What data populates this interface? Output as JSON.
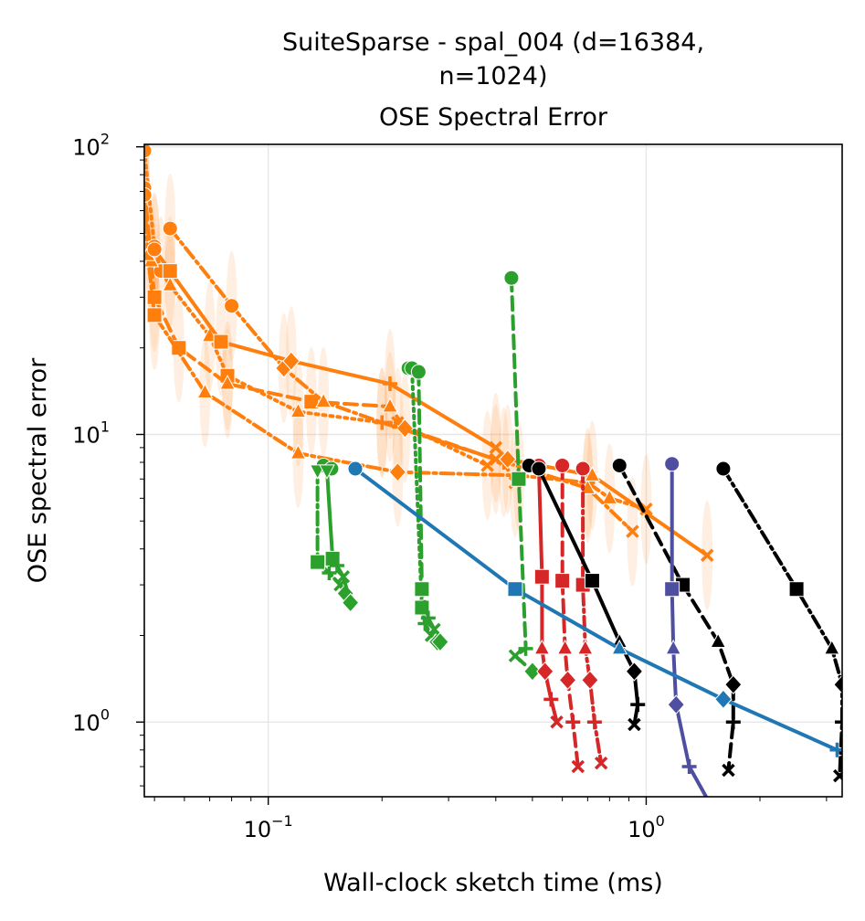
{
  "chart_data": {
    "type": "line",
    "title_lines": [
      "SuiteSparse - spal_004 (d=16384,",
      "n=1024)",
      "OSE Spectral Error"
    ],
    "xlabel": "Wall-clock sketch time (ms)",
    "ylabel": "OSE spectral error",
    "x_scale": "log",
    "y_scale": "log",
    "xlim": [
      0.047,
      3.3
    ],
    "ylim": [
      0.55,
      102
    ],
    "grid": true,
    "x_ticks": [
      {
        "base": "10",
        "exp": "−1",
        "value": 0.1
      },
      {
        "base": "10",
        "exp": "0",
        "value": 1
      }
    ],
    "y_ticks": [
      {
        "base": "10",
        "exp": "0",
        "value": 1
      },
      {
        "base": "10",
        "exp": "1",
        "value": 10
      },
      {
        "base": "10",
        "exp": "2",
        "value": 100
      }
    ],
    "series": [
      {
        "color": "#ff7f0e",
        "style": "dotted",
        "points": [
          [
            0.047,
            97,
            "o"
          ],
          [
            0.05,
            45,
            "o"
          ],
          [
            0.052,
            37,
            "o"
          ],
          [
            0.055,
            33,
            "^"
          ],
          [
            0.07,
            22,
            "^"
          ],
          [
            0.078,
            16,
            "s"
          ],
          [
            0.12,
            12,
            "^"
          ],
          [
            0.2,
            11,
            "+"
          ],
          [
            0.22,
            11,
            "x"
          ],
          [
            0.38,
            7.8,
            "x"
          ]
        ]
      },
      {
        "color": "#ff7f0e",
        "style": "dashed",
        "points": [
          [
            0.047,
            72,
            "o"
          ],
          [
            0.049,
            40,
            "^"
          ],
          [
            0.05,
            30,
            "s"
          ],
          [
            0.058,
            20,
            "s"
          ],
          [
            0.078,
            15,
            "^"
          ],
          [
            0.13,
            13,
            "s"
          ],
          [
            0.21,
            12.5,
            "^"
          ],
          [
            0.23,
            10.5,
            "D"
          ],
          [
            0.42,
            8,
            "+"
          ],
          [
            0.45,
            6.8,
            "x"
          ]
        ]
      },
      {
        "color": "#ff7f0e",
        "style": "dashdot",
        "points": [
          [
            0.047,
            68,
            "o"
          ],
          [
            0.048,
            42,
            "^"
          ],
          [
            0.05,
            26,
            "s"
          ],
          [
            0.068,
            14,
            "^"
          ],
          [
            0.12,
            8.6,
            "^"
          ],
          [
            0.22,
            7.4,
            "D"
          ],
          [
            0.46,
            7.2,
            "+"
          ],
          [
            0.7,
            6.8,
            "+"
          ],
          [
            0.8,
            6,
            "^"
          ],
          [
            1.0,
            5.5,
            "x"
          ]
        ]
      },
      {
        "color": "#ff7f0e",
        "style": "dashdot",
        "points": [
          [
            0.055,
            52,
            "o"
          ],
          [
            0.08,
            28,
            "o"
          ],
          [
            0.11,
            17,
            "D"
          ],
          [
            0.14,
            13,
            "^"
          ],
          [
            0.2,
            11,
            "+"
          ],
          [
            0.4,
            8.2,
            "x"
          ],
          [
            0.7,
            6.5,
            "^"
          ],
          [
            0.92,
            4.6,
            "x"
          ]
        ]
      },
      {
        "color": "#ff7f0e",
        "style": "solid",
        "points": [
          [
            0.05,
            44,
            "o"
          ],
          [
            0.055,
            37,
            "s"
          ],
          [
            0.075,
            21,
            "s"
          ],
          [
            0.115,
            18,
            "D"
          ],
          [
            0.21,
            15,
            "+"
          ],
          [
            0.4,
            9,
            "x"
          ],
          [
            0.43,
            8.2,
            "D"
          ],
          [
            0.72,
            7.2,
            "^"
          ],
          [
            1.45,
            3.8,
            "x"
          ]
        ]
      },
      {
        "color": "#2ca02c",
        "style": "dashdot",
        "points": [
          [
            0.14,
            7.8,
            "o"
          ],
          [
            0.135,
            7.5,
            "v"
          ],
          [
            0.135,
            3.6,
            "s"
          ],
          [
            0.145,
            3.3,
            "+"
          ],
          [
            0.155,
            3.0,
            "x"
          ],
          [
            0.16,
            2.8,
            "D"
          ]
        ]
      },
      {
        "color": "#2ca02c",
        "style": "solid",
        "points": [
          [
            0.147,
            7.6,
            "o"
          ],
          [
            0.143,
            7.5,
            "v"
          ],
          [
            0.148,
            3.7,
            "s"
          ],
          [
            0.152,
            3.5,
            "+"
          ],
          [
            0.158,
            3.2,
            "x"
          ],
          [
            0.165,
            2.6,
            "D"
          ]
        ]
      },
      {
        "color": "#2ca02c",
        "style": "dotted",
        "points": [
          [
            0.235,
            17,
            "o"
          ],
          [
            0.24,
            17,
            "o"
          ],
          [
            0.255,
            2.5,
            "s"
          ],
          [
            0.26,
            2.2,
            "+"
          ],
          [
            0.27,
            2.0,
            "x"
          ],
          [
            0.28,
            1.9,
            "D"
          ]
        ]
      },
      {
        "color": "#2ca02c",
        "style": "dashed",
        "points": [
          [
            0.25,
            16.5,
            "o"
          ],
          [
            0.255,
            2.9,
            "s"
          ],
          [
            0.265,
            2.3,
            "+"
          ],
          [
            0.275,
            2.1,
            "x"
          ],
          [
            0.285,
            1.9,
            "D"
          ]
        ]
      },
      {
        "color": "#2ca02c",
        "style": "dashed",
        "points": [
          [
            0.44,
            35,
            "o"
          ],
          [
            0.46,
            7,
            "s"
          ],
          [
            0.48,
            1.8,
            "+"
          ],
          [
            0.45,
            1.7,
            "x"
          ],
          [
            0.5,
            1.5,
            "D"
          ]
        ]
      },
      {
        "color": "#d62728",
        "style": "solid",
        "points": [
          [
            0.52,
            7.8,
            "o"
          ],
          [
            0.53,
            3.2,
            "s"
          ],
          [
            0.53,
            1.8,
            "^"
          ],
          [
            0.54,
            1.5,
            "D"
          ],
          [
            0.56,
            1.2,
            "+"
          ],
          [
            0.58,
            1.0,
            "x"
          ]
        ]
      },
      {
        "color": "#d62728",
        "style": "dashed",
        "points": [
          [
            0.6,
            7.8,
            "o"
          ],
          [
            0.6,
            3.1,
            "s"
          ],
          [
            0.61,
            1.8,
            "^"
          ],
          [
            0.62,
            1.4,
            "D"
          ],
          [
            0.64,
            1.0,
            "+"
          ],
          [
            0.66,
            0.7,
            "x"
          ]
        ]
      },
      {
        "color": "#d62728",
        "style": "dashdot",
        "points": [
          [
            0.68,
            7.6,
            "o"
          ],
          [
            0.68,
            3.0,
            "s"
          ],
          [
            0.69,
            1.8,
            "^"
          ],
          [
            0.71,
            1.4,
            "D"
          ],
          [
            0.73,
            1.0,
            "+"
          ],
          [
            0.76,
            0.72,
            "x"
          ]
        ]
      },
      {
        "color": "#000000",
        "style": "solid",
        "points": [
          [
            0.49,
            7.8,
            "o"
          ],
          [
            0.52,
            7.6,
            "o"
          ],
          [
            0.72,
            3.1,
            "s"
          ],
          [
            0.85,
            1.9,
            "^"
          ],
          [
            0.93,
            1.5,
            "D"
          ],
          [
            0.95,
            1.15,
            "+"
          ],
          [
            0.93,
            0.98,
            "x"
          ]
        ]
      },
      {
        "color": "#000000",
        "style": "dashed",
        "points": [
          [
            0.85,
            7.8,
            "o"
          ],
          [
            1.25,
            3.0,
            "s"
          ],
          [
            1.55,
            1.9,
            "^"
          ],
          [
            1.7,
            1.35,
            "D"
          ],
          [
            1.7,
            1.0,
            "+"
          ],
          [
            1.65,
            0.68,
            "x"
          ]
        ]
      },
      {
        "color": "#000000",
        "style": "dashdot",
        "points": [
          [
            1.6,
            7.6,
            "o"
          ],
          [
            2.5,
            2.9,
            "s"
          ],
          [
            3.1,
            1.8,
            "^"
          ],
          [
            3.3,
            1.35,
            "D"
          ],
          [
            3.3,
            1.0,
            "+"
          ],
          [
            3.25,
            0.65,
            "x"
          ]
        ]
      },
      {
        "color": "#4e4fa0",
        "style": "solid",
        "points": [
          [
            1.17,
            7.9,
            "o"
          ],
          [
            1.17,
            2.9,
            "s"
          ],
          [
            1.18,
            1.8,
            "^"
          ],
          [
            1.2,
            1.15,
            "D"
          ],
          [
            1.3,
            0.7,
            "+"
          ],
          [
            1.5,
            0.5,
            ""
          ]
        ]
      },
      {
        "color": "#1f77b4",
        "style": "solid",
        "points": [
          [
            0.17,
            7.6,
            "o"
          ],
          [
            0.45,
            2.9,
            "s"
          ],
          [
            0.85,
            1.8,
            "^"
          ],
          [
            1.6,
            1.2,
            "D"
          ],
          [
            3.2,
            0.8,
            "+"
          ]
        ]
      }
    ]
  }
}
